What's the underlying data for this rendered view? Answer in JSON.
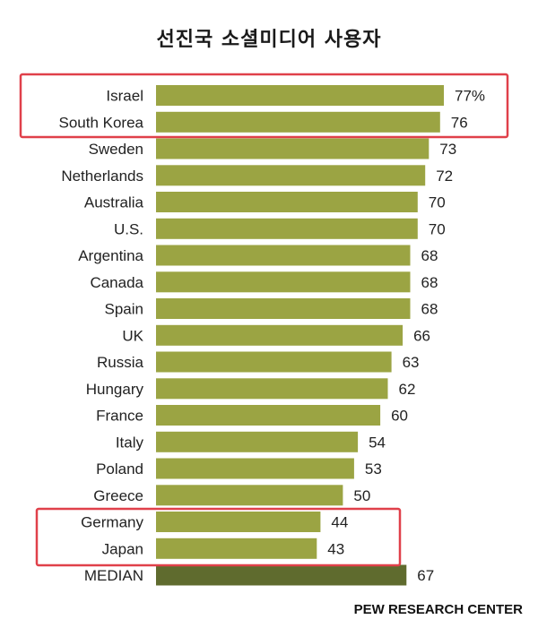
{
  "title": "선진국 소셜미디어 사용자",
  "source": "PEW RESEARCH CENTER",
  "colors": {
    "bar": "#9ba443",
    "median_bar": "#5f6b2e",
    "highlight": "#e0404a"
  },
  "chart_data": {
    "type": "bar",
    "orientation": "horizontal",
    "title": "선진국 소셜미디어 사용자",
    "categories": [
      "Israel",
      "South Korea",
      "Sweden",
      "Netherlands",
      "Australia",
      "U.S.",
      "Argentina",
      "Canada",
      "Spain",
      "UK",
      "Russia",
      "Hungary",
      "France",
      "Italy",
      "Poland",
      "Greece",
      "Germany",
      "Japan",
      "MEDIAN"
    ],
    "values": [
      77,
      76,
      73,
      72,
      70,
      70,
      68,
      68,
      68,
      66,
      63,
      62,
      60,
      54,
      53,
      50,
      44,
      43,
      67
    ],
    "value_labels": [
      "77%",
      "76",
      "73",
      "72",
      "70",
      "70",
      "68",
      "68",
      "68",
      "66",
      "63",
      "62",
      "60",
      "54",
      "53",
      "50",
      "44",
      "43",
      "67"
    ],
    "xlim": [
      0,
      77
    ],
    "grid": false,
    "highlighted_groups": [
      [
        "Israel",
        "South Korea"
      ],
      [
        "Germany",
        "Japan"
      ]
    ]
  }
}
